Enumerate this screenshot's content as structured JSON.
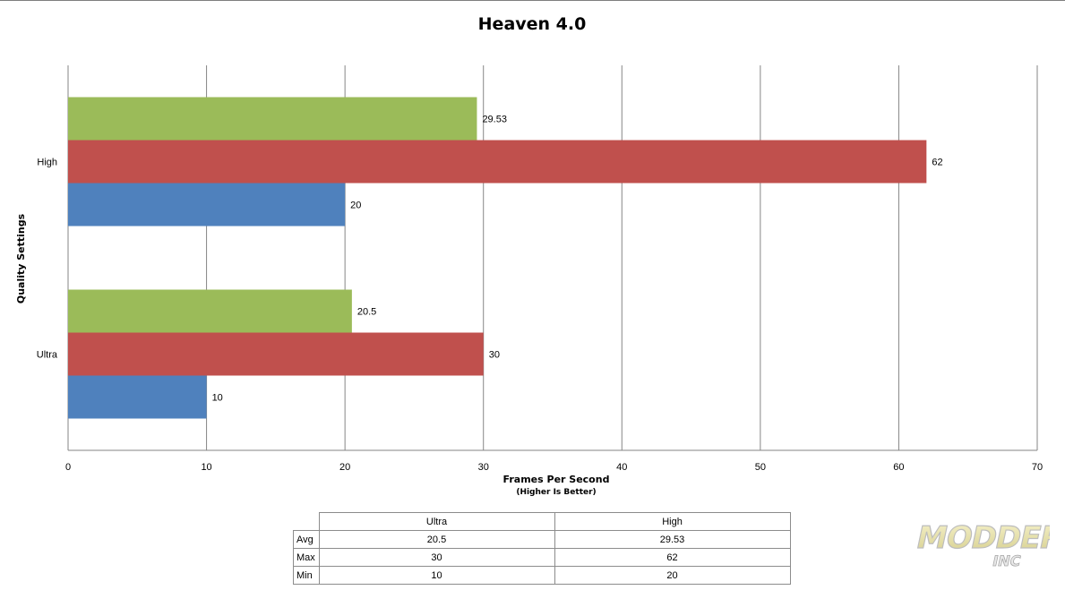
{
  "chart_data": {
    "type": "bar",
    "orientation": "horizontal",
    "title": "Heaven 4.0",
    "xlabel": "Frames Per Second",
    "xlabel_sub": "(Higher Is Better)",
    "ylabel": "Quality Settings",
    "categories": [
      "Ultra",
      "High"
    ],
    "series": [
      {
        "name": "Avg",
        "values": [
          20.5,
          29.53
        ],
        "color": "#9bbb59"
      },
      {
        "name": "Max",
        "values": [
          30,
          62
        ],
        "color": "#c0504d"
      },
      {
        "name": "Min",
        "values": [
          10,
          20
        ],
        "color": "#4f81bd"
      }
    ],
    "data_labels": {
      "Ultra": {
        "Avg": "20.5",
        "Max": "30",
        "Min": "10"
      },
      "High": {
        "Avg": "29.53",
        "Max": "62",
        "Min": "20"
      }
    },
    "xlim": [
      0,
      70
    ],
    "xticks": [
      0,
      10,
      20,
      30,
      40,
      50,
      60,
      70
    ],
    "grid": true,
    "data_table": {
      "columns": [
        "Ultra",
        "High"
      ],
      "rows": [
        {
          "label": "Avg",
          "values": [
            "20.5",
            "29.53"
          ]
        },
        {
          "label": "Max",
          "values": [
            "30",
            "62"
          ]
        },
        {
          "label": "Min",
          "values": [
            "10",
            "20"
          ]
        }
      ]
    }
  },
  "watermark": {
    "text": "MODDERS",
    "sub": "INC"
  }
}
